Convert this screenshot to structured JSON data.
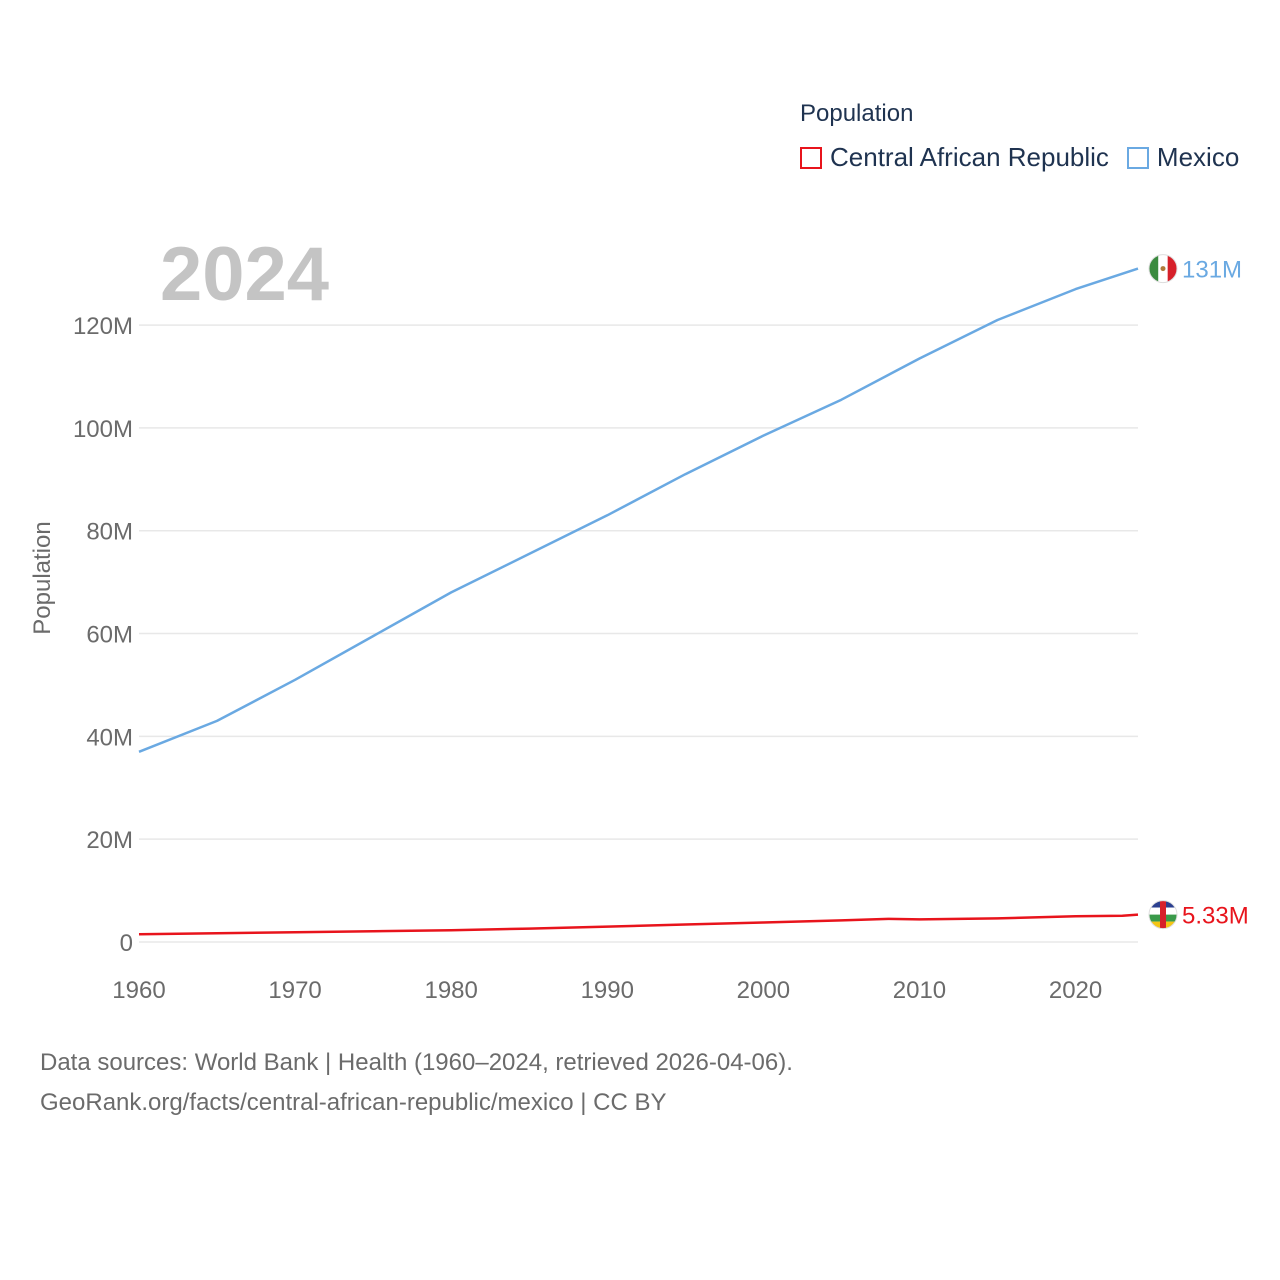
{
  "chart_data": {
    "type": "line",
    "title": "Population",
    "year_label": "2024",
    "xlabel": "",
    "ylabel": "Population",
    "xlim": [
      1960,
      2024
    ],
    "ylim": [
      0,
      135000000
    ],
    "x_ticks": [
      1960,
      1970,
      1980,
      1990,
      2000,
      2010,
      2020
    ],
    "x_tick_labels": [
      "1960",
      "1970",
      "1980",
      "1990",
      "2000",
      "2010",
      "2020"
    ],
    "y_ticks": [
      0,
      20000000,
      40000000,
      60000000,
      80000000,
      100000000,
      120000000
    ],
    "y_tick_labels": [
      "0",
      "20M",
      "40M",
      "60M",
      "80M",
      "100M",
      "120M"
    ],
    "grid": true,
    "legend_position": "top-right",
    "series": [
      {
        "name": "Central African Republic",
        "color": "#e8141c",
        "end_label": "5.33M",
        "end_flag": "central-african-republic-flag",
        "x": [
          1960,
          1965,
          1970,
          1975,
          1980,
          1985,
          1990,
          1995,
          2000,
          2005,
          2008,
          2010,
          2015,
          2020,
          2023,
          2024
        ],
        "values": [
          1500000,
          1700000,
          1900000,
          2100000,
          2300000,
          2600000,
          3000000,
          3400000,
          3800000,
          4200000,
          4500000,
          4400000,
          4600000,
          5000000,
          5100000,
          5330000
        ]
      },
      {
        "name": "Mexico",
        "color": "#6aa9e2",
        "end_label": "131M",
        "end_flag": "mexico-flag",
        "x": [
          1960,
          1965,
          1970,
          1975,
          1980,
          1985,
          1990,
          1995,
          2000,
          2005,
          2010,
          2015,
          2020,
          2024
        ],
        "values": [
          37000000,
          43000000,
          51000000,
          59500000,
          68000000,
          75500000,
          83000000,
          91000000,
          98500000,
          105500000,
          113500000,
          121000000,
          127000000,
          131000000
        ]
      }
    ]
  },
  "footer": {
    "line1": "Data sources: World Bank | Health (1960–2024, retrieved 2026-04-06).",
    "line2": "GeoRank.org/facts/central-african-republic/mexico | CC BY"
  }
}
